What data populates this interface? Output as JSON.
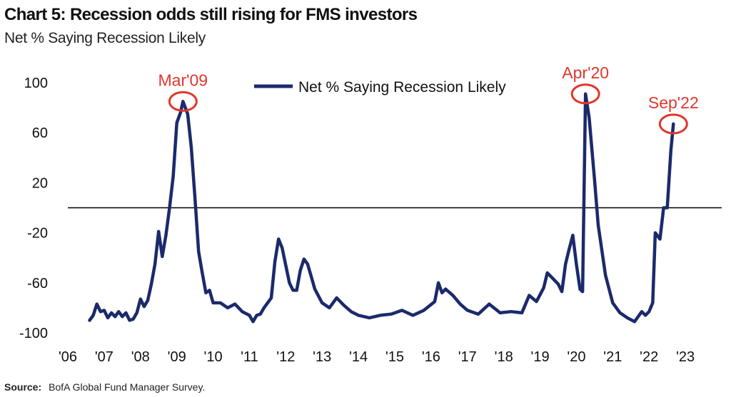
{
  "header": {
    "title": "Chart 5: Recession odds still rising for FMS investors",
    "subtitle": "Net % Saying Recession Likely"
  },
  "footer": {
    "source_label": "Source:",
    "source_text": "BofA Global Fund Manager Survey."
  },
  "colors": {
    "line": "#1b2a6b",
    "annotation": "#e0362c",
    "zero_line": "#000000"
  },
  "chart_data": {
    "type": "line",
    "title": "",
    "xlabel": "",
    "ylabel": "",
    "xlim": [
      2006,
      2024
    ],
    "ylim": [
      -100,
      100
    ],
    "y_ticks": [
      100,
      60,
      20,
      -20,
      -60,
      -100
    ],
    "x_ticks": [
      "'06",
      "'07",
      "'08",
      "'09",
      "'10",
      "'11",
      "'12",
      "'13",
      "'14",
      "'15",
      "'16",
      "'17",
      "'18",
      "'19",
      "'20",
      "'21",
      "'22",
      "'23"
    ],
    "grid": false,
    "reference_line": 0,
    "legend": {
      "position": "top-center",
      "entries": [
        "Net % Saying Recession Likely"
      ]
    },
    "annotations": [
      {
        "label": "Mar'09",
        "x": 2009.17,
        "y": 85
      },
      {
        "label": "Apr'20",
        "x": 2020.25,
        "y": 91
      },
      {
        "label": "Sep'22",
        "x": 2022.67,
        "y": 67
      }
    ],
    "series": [
      {
        "name": "Net % Saying Recession Likely",
        "x": [
          2006.6,
          2006.7,
          2006.8,
          2006.9,
          2007.0,
          2007.1,
          2007.2,
          2007.3,
          2007.4,
          2007.5,
          2007.6,
          2007.7,
          2007.8,
          2007.9,
          2008.0,
          2008.1,
          2008.2,
          2008.3,
          2008.4,
          2008.5,
          2008.6,
          2008.7,
          2008.8,
          2008.9,
          2009.0,
          2009.1,
          2009.17,
          2009.3,
          2009.4,
          2009.5,
          2009.6,
          2009.7,
          2009.8,
          2009.9,
          2010.0,
          2010.2,
          2010.4,
          2010.6,
          2010.8,
          2011.0,
          2011.1,
          2011.2,
          2011.3,
          2011.4,
          2011.6,
          2011.7,
          2011.8,
          2011.9,
          2012.0,
          2012.1,
          2012.2,
          2012.3,
          2012.4,
          2012.5,
          2012.6,
          2012.7,
          2012.8,
          2013.0,
          2013.2,
          2013.4,
          2013.6,
          2013.8,
          2014.0,
          2014.3,
          2014.6,
          2014.9,
          2015.2,
          2015.5,
          2015.8,
          2016.1,
          2016.2,
          2016.3,
          2016.4,
          2016.6,
          2016.8,
          2017.0,
          2017.3,
          2017.6,
          2017.9,
          2018.2,
          2018.5,
          2018.7,
          2018.9,
          2019.1,
          2019.2,
          2019.4,
          2019.5,
          2019.6,
          2019.7,
          2019.8,
          2019.9,
          2020.0,
          2020.1,
          2020.17,
          2020.25,
          2020.35,
          2020.5,
          2020.6,
          2020.8,
          2021.0,
          2021.2,
          2021.4,
          2021.6,
          2021.8,
          2021.9,
          2022.0,
          2022.1,
          2022.17,
          2022.3,
          2022.4,
          2022.5,
          2022.6,
          2022.67
        ],
        "values": [
          -90,
          -86,
          -77,
          -83,
          -82,
          -88,
          -84,
          -87,
          -83,
          -87,
          -84,
          -90,
          -89,
          -84,
          -73,
          -79,
          -74,
          -61,
          -45,
          -19,
          -39,
          -22,
          0,
          25,
          68,
          76,
          85,
          75,
          48,
          8,
          -35,
          -52,
          -68,
          -66,
          -76,
          -76,
          -80,
          -77,
          -83,
          -86,
          -91,
          -86,
          -85,
          -80,
          -72,
          -43,
          -25,
          -32,
          -46,
          -60,
          -66,
          -66,
          -50,
          -41,
          -45,
          -55,
          -65,
          -76,
          -80,
          -72,
          -78,
          -83,
          -86,
          -88,
          -86,
          -85,
          -82,
          -86,
          -82,
          -75,
          -60,
          -68,
          -65,
          -70,
          -77,
          -82,
          -85,
          -77,
          -84,
          -83,
          -84,
          -70,
          -75,
          -64,
          -52,
          -58,
          -61,
          -67,
          -45,
          -33,
          -22,
          -45,
          -65,
          -67,
          91,
          72,
          22,
          -14,
          -54,
          -76,
          -84,
          -88,
          -91,
          -83,
          -86,
          -83,
          -76,
          -20,
          -25,
          0,
          0,
          46,
          67
        ]
      }
    ]
  }
}
